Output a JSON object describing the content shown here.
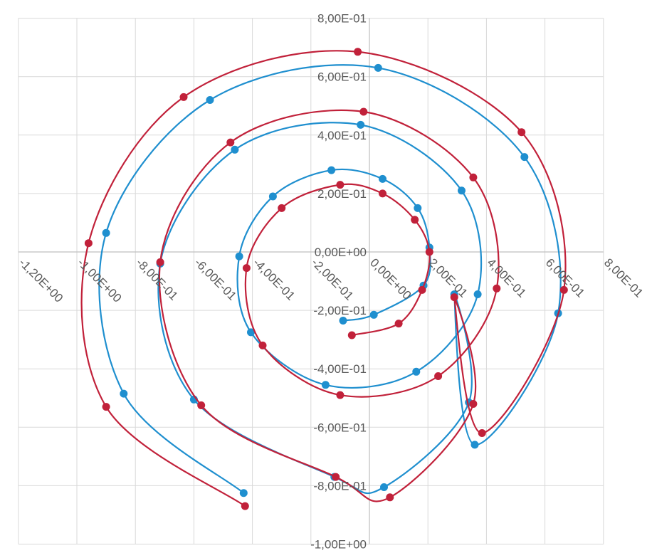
{
  "chart_data": {
    "type": "scatter",
    "title": "",
    "xlabel": "",
    "ylabel": "",
    "xlim": [
      -1.2,
      0.8
    ],
    "ylim": [
      -1.0,
      0.8
    ],
    "grid": true,
    "line_style": "smoothed lines with markers",
    "x_ticks": [
      "-1,20E+00",
      "-1,00E+00",
      "-8,00E-01",
      "-6,00E-01",
      "-4,00E-01",
      "-2,00E-01",
      "0,00E+00",
      "2,00E-01",
      "4,00E-01",
      "6,00E-01",
      "8,00E-01"
    ],
    "x_tick_values": [
      -1.2,
      -1.0,
      -0.8,
      -0.6,
      -0.4,
      -0.2,
      0.0,
      0.2,
      0.4,
      0.6,
      0.8
    ],
    "y_ticks": [
      "8,00E-01",
      "6,00E-01",
      "4,00E-01",
      "2,00E-01",
      "0,00E+00",
      "-2,00E-01",
      "-4,00E-01",
      "-6,00E-01",
      "-8,00E-01",
      "-1,00E+00"
    ],
    "y_tick_values": [
      0.8,
      0.6,
      0.4,
      0.2,
      0.0,
      -0.2,
      -0.4,
      -0.6,
      -0.8,
      -1.0
    ],
    "series": [
      {
        "color": "#1f8fcf",
        "points": [
          [
            -0.09,
            -0.235
          ],
          [
            0.015,
            -0.215
          ],
          [
            0.185,
            -0.115
          ],
          [
            0.205,
            0.015
          ],
          [
            0.165,
            0.15
          ],
          [
            0.045,
            0.25
          ],
          [
            -0.13,
            0.28
          ],
          [
            -0.33,
            0.19
          ],
          [
            -0.445,
            -0.015
          ],
          [
            -0.405,
            -0.275
          ],
          [
            -0.15,
            -0.455
          ],
          [
            0.16,
            -0.41
          ],
          [
            0.37,
            -0.145
          ],
          [
            0.315,
            0.21
          ],
          [
            -0.03,
            0.435
          ],
          [
            -0.46,
            0.35
          ],
          [
            -0.715,
            -0.04
          ],
          [
            -0.6,
            -0.505
          ],
          [
            -0.12,
            -0.77
          ],
          [
            0.05,
            -0.805
          ],
          [
            0.34,
            -0.515
          ],
          [
            0.29,
            -0.145
          ],
          [
            0.36,
            -0.66
          ],
          [
            0.645,
            -0.21
          ],
          [
            0.53,
            0.325
          ],
          [
            0.03,
            0.63
          ],
          [
            -0.545,
            0.52
          ],
          [
            -0.9,
            0.065
          ],
          [
            -0.84,
            -0.485
          ],
          [
            -0.43,
            -0.825
          ]
        ]
      },
      {
        "color": "#c1213a",
        "points": [
          [
            -0.06,
            -0.285
          ],
          [
            0.1,
            -0.245
          ],
          [
            0.18,
            -0.13
          ],
          [
            0.205,
            0.0
          ],
          [
            0.155,
            0.11
          ],
          [
            0.045,
            0.2
          ],
          [
            -0.1,
            0.23
          ],
          [
            -0.3,
            0.15
          ],
          [
            -0.42,
            -0.055
          ],
          [
            -0.365,
            -0.32
          ],
          [
            -0.1,
            -0.49
          ],
          [
            0.235,
            -0.425
          ],
          [
            0.435,
            -0.125
          ],
          [
            0.355,
            0.255
          ],
          [
            -0.02,
            0.48
          ],
          [
            -0.475,
            0.375
          ],
          [
            -0.715,
            -0.035
          ],
          [
            -0.575,
            -0.525
          ],
          [
            -0.115,
            -0.77
          ],
          [
            0.07,
            -0.84
          ],
          [
            0.355,
            -0.52
          ],
          [
            0.29,
            -0.155
          ],
          [
            0.385,
            -0.62
          ],
          [
            0.665,
            -0.13
          ],
          [
            0.52,
            0.41
          ],
          [
            -0.04,
            0.685
          ],
          [
            -0.635,
            0.53
          ],
          [
            -0.96,
            0.03
          ],
          [
            -0.9,
            -0.53
          ],
          [
            -0.425,
            -0.87
          ]
        ]
      }
    ]
  }
}
